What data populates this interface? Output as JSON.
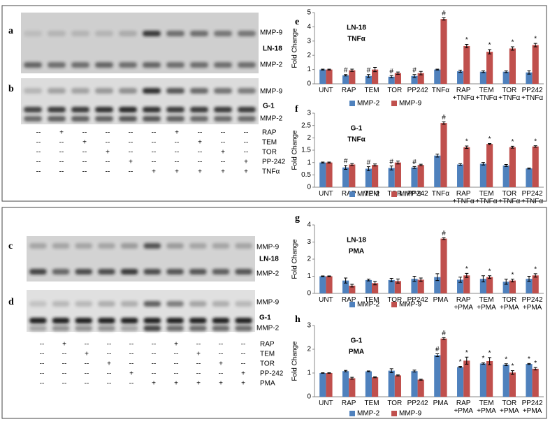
{
  "gels": [
    {
      "panels": [
        {
          "letter": "a",
          "labels": [
            "MMP-9",
            "LN-18",
            "MMP-2"
          ]
        },
        {
          "letter": "b",
          "labels": [
            "MMP-9",
            "G-1",
            "MMP-2"
          ]
        }
      ],
      "treatments": [
        {
          "name": "RAP",
          "lanes": [
            "--",
            "+",
            "--",
            "--",
            "--",
            "--",
            "+",
            "--",
            "--",
            "--"
          ]
        },
        {
          "name": "TEM",
          "lanes": [
            "--",
            "--",
            "+",
            "--",
            "--",
            "--",
            "--",
            "+",
            "--",
            "--"
          ]
        },
        {
          "name": "TOR",
          "lanes": [
            "--",
            "--",
            "--",
            "+",
            "--",
            "--",
            "--",
            "--",
            "+",
            "--"
          ]
        },
        {
          "name": "PP-242",
          "lanes": [
            "--",
            "--",
            "--",
            "--",
            "+",
            "--",
            "--",
            "--",
            "--",
            "+"
          ]
        },
        {
          "name": "TNFα",
          "lanes": [
            "--",
            "--",
            "--",
            "--",
            "--",
            "+",
            "+",
            "+",
            "+",
            "+"
          ]
        }
      ]
    },
    {
      "panels": [
        {
          "letter": "c",
          "labels": [
            "MMP-9",
            "LN-18",
            "MMP-2"
          ]
        },
        {
          "letter": "d",
          "labels": [
            "MMP-9",
            "G-1",
            "MMP-2"
          ]
        }
      ],
      "treatments": [
        {
          "name": "RAP",
          "lanes": [
            "--",
            "+",
            "--",
            "--",
            "--",
            "--",
            "+",
            "--",
            "--",
            "--"
          ]
        },
        {
          "name": "TEM",
          "lanes": [
            "--",
            "--",
            "+",
            "--",
            "--",
            "--",
            "--",
            "+",
            "--",
            "--"
          ]
        },
        {
          "name": "TOR",
          "lanes": [
            "--",
            "--",
            "--",
            "+",
            "--",
            "--",
            "--",
            "--",
            "+",
            "--"
          ]
        },
        {
          "name": "PP-242",
          "lanes": [
            "--",
            "--",
            "--",
            "--",
            "+",
            "--",
            "--",
            "--",
            "--",
            "+"
          ]
        },
        {
          "name": "PMA",
          "lanes": [
            "--",
            "--",
            "--",
            "--",
            "--",
            "+",
            "+",
            "+",
            "+",
            "+"
          ]
        }
      ]
    }
  ],
  "chart_data": [
    {
      "type": "bar",
      "letter": "e",
      "title": "LN-18",
      "subtitle": "TNFα",
      "y_label": "Fold Change",
      "categories": [
        "UNT",
        "RAP",
        "TEM",
        "TOR",
        "PP242",
        "TNFα",
        "RAP +TNFα",
        "TEM +TNFα",
        "TOR +TNFα",
        "PP242 +TNFα"
      ],
      "ylim": [
        0,
        5
      ],
      "yticks": [
        0,
        1,
        2,
        3,
        4,
        5
      ],
      "series": [
        {
          "name": "MMP-2",
          "color": "#4f81bd",
          "values": [
            1.0,
            0.6,
            0.55,
            0.5,
            0.55,
            1.0,
            0.88,
            0.85,
            0.85,
            0.8
          ],
          "errors": [
            0.03,
            0.05,
            0.1,
            0.08,
            0.1,
            0.03,
            0.08,
            0.06,
            0.06,
            0.12
          ],
          "markers": [
            null,
            "#",
            "#",
            "#",
            "#",
            null,
            null,
            null,
            null,
            null
          ]
        },
        {
          "name": "MMP-9",
          "color": "#c0504d",
          "values": [
            1.0,
            0.95,
            1.0,
            0.75,
            0.75,
            4.55,
            2.65,
            2.25,
            2.48,
            2.72
          ],
          "errors": [
            0.03,
            0.08,
            0.15,
            0.08,
            0.12,
            0.08,
            0.12,
            0.15,
            0.12,
            0.12
          ],
          "markers": [
            null,
            null,
            null,
            null,
            null,
            "#",
            "*",
            "*",
            "*",
            "*"
          ]
        }
      ]
    },
    {
      "type": "bar",
      "letter": "f",
      "title": "G-1",
      "subtitle": "TNFα",
      "y_label": "Fold Change",
      "categories": [
        "UNT",
        "RAP",
        "TEM",
        "TOR",
        "PP242",
        "TNFα",
        "RAP +TNFα",
        "TEM +TNFα",
        "TOR +TNFα",
        "PP242 +TNFα"
      ],
      "ylim": [
        0,
        3
      ],
      "yticks": [
        0,
        0.5,
        1,
        1.5,
        2,
        2.5,
        3
      ],
      "series": [
        {
          "name": "MMP-2",
          "color": "#4f81bd",
          "values": [
            1.0,
            0.8,
            0.75,
            0.78,
            0.8,
            1.28,
            0.92,
            0.95,
            0.88,
            0.76
          ],
          "errors": [
            0.02,
            0.08,
            0.08,
            0.08,
            0.04,
            0.06,
            0.03,
            0.05,
            0.04,
            0.02
          ],
          "markers": [
            null,
            "#",
            "#",
            "#",
            "#",
            null,
            null,
            null,
            null,
            null
          ]
        },
        {
          "name": "MMP-9",
          "color": "#c0504d",
          "values": [
            1.0,
            0.92,
            0.9,
            1.0,
            0.9,
            2.6,
            1.62,
            1.75,
            1.62,
            1.65
          ],
          "errors": [
            0.02,
            0.04,
            0.04,
            0.06,
            0.03,
            0.05,
            0.05,
            0.02,
            0.04,
            0.03
          ],
          "markers": [
            null,
            null,
            null,
            null,
            null,
            "#",
            "*",
            "*",
            "*",
            "*"
          ]
        }
      ]
    },
    {
      "type": "bar",
      "letter": "g",
      "title": "LN-18",
      "subtitle": "PMA",
      "y_label": "Fold Change",
      "categories": [
        "UNT",
        "RAP",
        "TEM",
        "TOR",
        "PP242",
        "PMA",
        "RAP +PMA",
        "TEM +PMA",
        "TOR +PMA",
        "PP242 +PMA"
      ],
      "ylim": [
        0,
        4
      ],
      "yticks": [
        0,
        1,
        2,
        3,
        4
      ],
      "series": [
        {
          "name": "MMP-2",
          "color": "#4f81bd",
          "values": [
            1.0,
            0.75,
            0.78,
            0.78,
            0.85,
            0.95,
            0.8,
            0.85,
            0.68,
            0.85
          ],
          "errors": [
            0.02,
            0.15,
            0.05,
            0.1,
            0.15,
            0.2,
            0.15,
            0.18,
            0.15,
            0.15
          ],
          "markers": [
            null,
            null,
            null,
            null,
            null,
            null,
            null,
            null,
            null,
            null
          ]
        },
        {
          "name": "MMP-9",
          "color": "#c0504d",
          "values": [
            1.0,
            0.45,
            0.6,
            0.72,
            0.8,
            3.2,
            1.05,
            0.95,
            0.75,
            1.05
          ],
          "errors": [
            0.02,
            0.08,
            0.1,
            0.12,
            0.1,
            0.05,
            0.12,
            0.08,
            0.08,
            0.1
          ],
          "markers": [
            null,
            null,
            null,
            null,
            null,
            "#",
            "*",
            "*",
            "*",
            "*"
          ]
        }
      ]
    },
    {
      "type": "bar",
      "letter": "h",
      "title": "G-1",
      "subtitle": "PMA",
      "y_label": "Fold Change",
      "categories": [
        "UNT",
        "RAP",
        "TEM",
        "TOR",
        "PP242",
        "PMA",
        "RAP +PMA",
        "TEM +PMA",
        "TOR +PMA",
        "PP242 +PMA"
      ],
      "ylim": [
        0,
        3
      ],
      "yticks": [
        0,
        1,
        2,
        3
      ],
      "series": [
        {
          "name": "MMP-2",
          "color": "#4f81bd",
          "values": [
            1.0,
            1.08,
            1.07,
            1.1,
            1.08,
            1.75,
            1.25,
            1.4,
            1.35,
            1.38
          ],
          "errors": [
            0.01,
            0.03,
            0.02,
            0.08,
            0.04,
            0.06,
            0.03,
            0.03,
            0.04,
            0.02
          ],
          "markers": [
            null,
            null,
            null,
            null,
            null,
            "#",
            "*",
            "*",
            "*",
            "*"
          ]
        },
        {
          "name": "MMP-9",
          "color": "#c0504d",
          "values": [
            1.0,
            0.78,
            0.82,
            0.9,
            0.72,
            2.45,
            1.52,
            1.5,
            1.02,
            1.18
          ],
          "errors": [
            0.01,
            0.04,
            0.02,
            0.02,
            0.02,
            0.04,
            0.15,
            0.15,
            0.08,
            0.05
          ],
          "markers": [
            null,
            null,
            null,
            null,
            null,
            "#",
            "*",
            "*",
            "*",
            "*"
          ]
        }
      ]
    }
  ]
}
